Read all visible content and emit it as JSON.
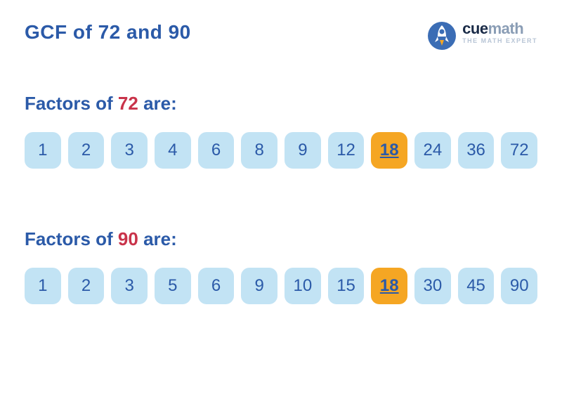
{
  "colors": {
    "title_color": "#2b5aa8",
    "label_color": "#2b5aa8",
    "accent_color": "#c9334a",
    "box_bg": "#c2e3f4",
    "box_text": "#2b5aa8",
    "highlight_bg": "#f5a623",
    "highlight_text": "#2b5aa8",
    "logo_dark": "#1a2b47",
    "logo_cue": "#1a2b47",
    "logo_math": "#8a9db5"
  },
  "title_prefix": "GCF of ",
  "title_num1": "72",
  "title_mid": " and ",
  "title_num2": "90",
  "logo": {
    "brand_cue": "cue",
    "brand_math": "math",
    "tagline": "THE MATH EXPERT"
  },
  "section1": {
    "label_prefix": "Factors of ",
    "label_num": "72",
    "label_suffix": " are:",
    "factors": [
      {
        "value": "1",
        "highlighted": false
      },
      {
        "value": "2",
        "highlighted": false
      },
      {
        "value": "3",
        "highlighted": false
      },
      {
        "value": "4",
        "highlighted": false
      },
      {
        "value": "6",
        "highlighted": false
      },
      {
        "value": "8",
        "highlighted": false
      },
      {
        "value": "9",
        "highlighted": false
      },
      {
        "value": "12",
        "highlighted": false
      },
      {
        "value": "18",
        "highlighted": true
      },
      {
        "value": "24",
        "highlighted": false
      },
      {
        "value": "36",
        "highlighted": false
      },
      {
        "value": "72",
        "highlighted": false
      }
    ]
  },
  "section2": {
    "label_prefix": "Factors of ",
    "label_num": "90",
    "label_suffix": " are:",
    "factors": [
      {
        "value": "1",
        "highlighted": false
      },
      {
        "value": "2",
        "highlighted": false
      },
      {
        "value": "3",
        "highlighted": false
      },
      {
        "value": "5",
        "highlighted": false
      },
      {
        "value": "6",
        "highlighted": false
      },
      {
        "value": "9",
        "highlighted": false
      },
      {
        "value": "10",
        "highlighted": false
      },
      {
        "value": "15",
        "highlighted": false
      },
      {
        "value": "18",
        "highlighted": true
      },
      {
        "value": "30",
        "highlighted": false
      },
      {
        "value": "45",
        "highlighted": false
      },
      {
        "value": "90",
        "highlighted": false
      }
    ]
  }
}
